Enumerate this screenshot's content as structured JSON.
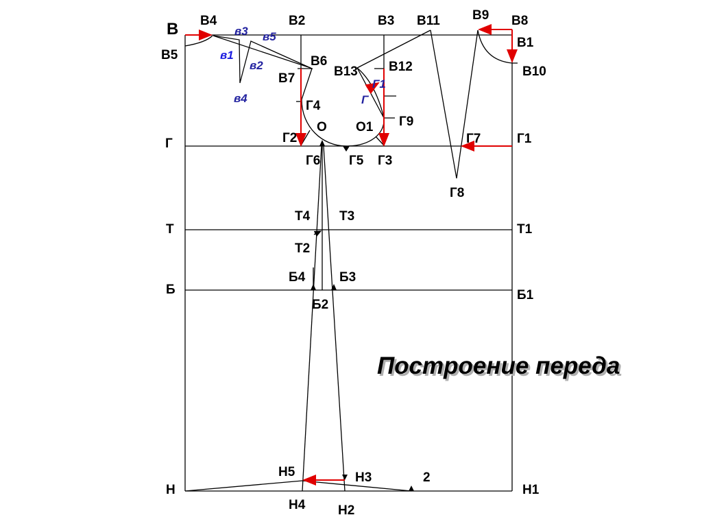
{
  "title": "Построение переда",
  "colors": {
    "lines": "#000000",
    "arrows": "#e00000",
    "dart_labels": "#2323a0"
  },
  "points": {
    "B": "В",
    "B4": "В4",
    "B2": "В2",
    "B3": "В3",
    "B11": "В11",
    "B9": "В9",
    "B8": "В8",
    "B1": "В1",
    "B5": "В5",
    "B10": "В10",
    "B6": "В6",
    "B7": "В7",
    "B13": "В13",
    "B12": "В12",
    "G4": "Г4",
    "G9": "Г9",
    "O": "О",
    "O1": "О1",
    "G2": "Г2",
    "G7": "Г7",
    "G": "Г",
    "G1": "Г1",
    "G6": "Г6",
    "G5": "Г5",
    "G3": "Г3",
    "G8": "Г8",
    "T4": "Т4",
    "T3": "Т3",
    "T": "Т",
    "T1": "Т1",
    "T2": "Т2",
    "B_4": "Б4",
    "B_3": "Б3",
    "B_": "Б",
    "B_1": "Б1",
    "B_2": "Б2",
    "H5": "Н5",
    "H3": "Н3",
    "two": "2",
    "H": "Н",
    "H1": "Н1",
    "H4": "Н4",
    "H2": "Н2",
    "v1": "в1",
    "v2": "в2",
    "v3": "в3",
    "v4": "в4",
    "v5": "в5",
    "g": "Г",
    "g1": "Г1"
  }
}
